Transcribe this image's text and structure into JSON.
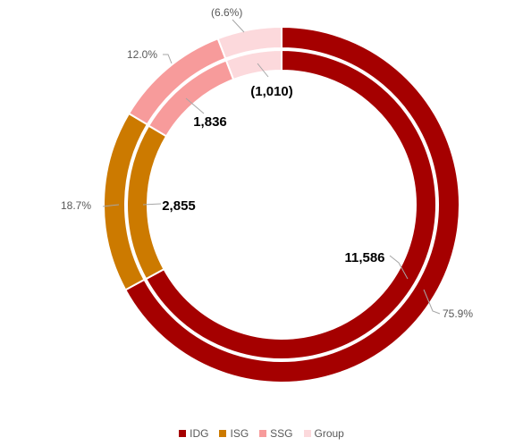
{
  "chart_data": {
    "type": "pie",
    "subtype": "double-doughnut",
    "title": "",
    "categories": [
      "IDG",
      "ISG",
      "SSG",
      "Group"
    ],
    "colors": [
      "#a50000",
      "#cc7a00",
      "#f79b9b",
      "#fcd9dc"
    ],
    "series": [
      {
        "ring": "inner",
        "values": [
          11586,
          2855,
          1836,
          -1010
        ],
        "value_labels": [
          "11,586",
          "2,855",
          "1,836",
          "(1,010)"
        ]
      },
      {
        "ring": "outer",
        "values": [
          75.9,
          18.7,
          12.0,
          -6.6
        ],
        "value_labels": [
          "75.9%",
          "18.7%",
          "12.0%",
          "(6.6%)"
        ]
      }
    ],
    "legend": {
      "position": "bottom",
      "entries": [
        "IDG",
        "ISG",
        "SSG",
        "Group"
      ]
    }
  }
}
